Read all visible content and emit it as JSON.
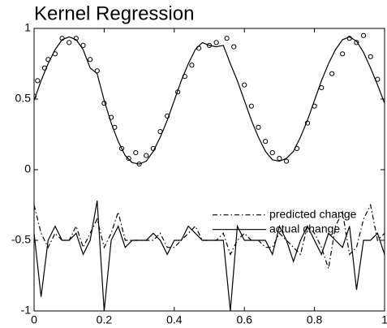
{
  "chart_data": {
    "type": "line",
    "title": "Kernel Regression",
    "x": [
      0,
      0.02,
      0.04,
      0.06,
      0.08,
      0.1,
      0.12,
      0.14,
      0.16,
      0.18,
      0.2,
      0.22,
      0.24,
      0.26,
      0.28,
      0.3,
      0.32,
      0.34,
      0.36,
      0.38,
      0.4,
      0.42,
      0.44,
      0.46,
      0.48,
      0.5,
      0.52,
      0.54,
      0.56,
      0.58,
      0.6,
      0.62,
      0.64,
      0.66,
      0.68,
      0.7,
      0.72,
      0.74,
      0.76,
      0.78,
      0.8,
      0.82,
      0.84,
      0.86,
      0.88,
      0.9,
      0.92,
      0.94,
      0.96,
      0.98,
      1
    ],
    "series": [
      {
        "type": "line",
        "color": "#000000",
        "dash": "solid",
        "values": [
          0.49,
          0.63,
          0.75,
          0.85,
          0.92,
          0.94,
          0.92,
          0.85,
          0.72,
          0.68,
          0.49,
          0.33,
          0.2,
          0.1,
          0.05,
          0.04,
          0.06,
          0.13,
          0.23,
          0.35,
          0.49,
          0.63,
          0.75,
          0.85,
          0.9,
          0.88,
          0.87,
          0.88,
          0.75,
          0.63,
          0.49,
          0.35,
          0.23,
          0.13,
          0.07,
          0.06,
          0.08,
          0.13,
          0.23,
          0.35,
          0.49,
          0.63,
          0.75,
          0.85,
          0.92,
          0.94,
          0.91,
          0.83,
          0.72,
          0.6,
          0.47
        ]
      },
      {
        "type": "scatter",
        "color": "#000000",
        "x": [
          0,
          0.01,
          0.03,
          0.04,
          0.06,
          0.08,
          0.1,
          0.12,
          0.14,
          0.16,
          0.18,
          0.2,
          0.22,
          0.23,
          0.25,
          0.27,
          0.29,
          0.3,
          0.32,
          0.34,
          0.36,
          0.38,
          0.41,
          0.43,
          0.45,
          0.47,
          0.5,
          0.52,
          0.55,
          0.57,
          0.6,
          0.62,
          0.64,
          0.66,
          0.68,
          0.7,
          0.72,
          0.75,
          0.78,
          0.8,
          0.82,
          0.85,
          0.88,
          0.9,
          0.92,
          0.94,
          0.96,
          0.98
        ],
        "values": [
          0.52,
          0.63,
          0.72,
          0.78,
          0.82,
          0.93,
          0.9,
          0.93,
          0.88,
          0.78,
          0.7,
          0.47,
          0.37,
          0.3,
          0.15,
          0.08,
          0.12,
          0.04,
          0.1,
          0.15,
          0.27,
          0.38,
          0.55,
          0.66,
          0.74,
          0.86,
          0.88,
          0.9,
          0.93,
          0.87,
          0.6,
          0.45,
          0.3,
          0.2,
          0.12,
          0.08,
          0.06,
          0.15,
          0.33,
          0.45,
          0.58,
          0.68,
          0.82,
          0.93,
          0.9,
          0.95,
          0.8,
          0.64
        ]
      },
      {
        "type": "line",
        "name": "predicted change",
        "color": "#000000",
        "dash": "dashdot",
        "values": [
          -0.25,
          -0.45,
          -0.55,
          -0.45,
          -0.5,
          -0.5,
          -0.4,
          -0.55,
          -0.45,
          -0.35,
          -0.55,
          -0.45,
          -0.3,
          -0.5,
          -0.5,
          -0.5,
          -0.5,
          -0.5,
          -0.45,
          -0.55,
          -0.55,
          -0.5,
          -0.45,
          -0.4,
          -0.5,
          -0.5,
          -0.5,
          -0.45,
          -0.6,
          -0.5,
          -0.45,
          -0.5,
          -0.5,
          -0.55,
          -0.55,
          -0.45,
          -0.5,
          -0.55,
          -0.6,
          -0.4,
          -0.45,
          -0.55,
          -0.7,
          -0.4,
          -0.3,
          -0.6,
          -0.55,
          -0.35,
          -0.25,
          -0.5,
          -0.45
        ]
      },
      {
        "type": "line",
        "name": "actual change",
        "color": "#000000",
        "dash": "solid",
        "values": [
          -0.45,
          -0.9,
          -0.5,
          -0.4,
          -0.5,
          -0.5,
          -0.45,
          -0.6,
          -0.5,
          -0.22,
          -1,
          -0.5,
          -0.4,
          -0.55,
          -0.5,
          -0.5,
          -0.5,
          -0.45,
          -0.5,
          -0.6,
          -0.5,
          -0.5,
          -0.4,
          -0.45,
          -0.5,
          -0.5,
          -0.5,
          -0.5,
          -1,
          -0.4,
          -0.5,
          -0.5,
          -0.5,
          -0.5,
          -0.6,
          -0.4,
          -0.5,
          -0.65,
          -0.5,
          -0.4,
          -0.5,
          -0.6,
          -0.45,
          -0.5,
          -0.55,
          -0.4,
          -0.85,
          -0.5,
          -0.5,
          -0.45,
          -0.6
        ]
      }
    ],
    "xlim": [
      0,
      1
    ],
    "xticks": [
      0,
      0.2,
      0.4,
      0.6,
      0.8,
      1
    ],
    "ylim": [
      -1,
      1
    ],
    "yticks": [
      -1,
      -0.5,
      0,
      0.5,
      1
    ],
    "legend": "right",
    "grid": false
  }
}
